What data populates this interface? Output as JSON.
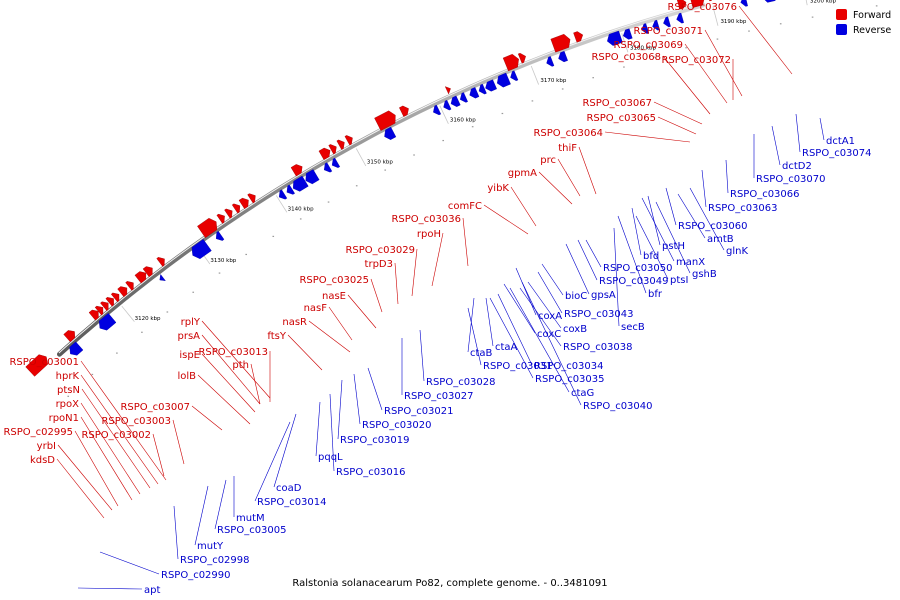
{
  "legend": [
    {
      "label": "Forward",
      "color": "#e80000"
    },
    {
      "label": "Reverse",
      "color": "#0000e0"
    }
  ],
  "caption": "Ralstonia solanacearum Po82, complete genome. - 0..3481091",
  "colors": {
    "forward": "#e80000",
    "reverse": "#0000e0",
    "label_forward": "#cc0000",
    "label_reverse": "#0000cc",
    "backbone": "#888888"
  },
  "ticks": [
    "3120 kbp",
    "3130 kbp",
    "3140 kbp",
    "3150 kbp",
    "3160 kbp",
    "3170 kbp",
    "3180 kbp",
    "3190 kbp",
    "3200 kbp"
  ],
  "forward_labels": [
    "RSPO_c03076",
    "RSPO_c03071",
    "RSPO_c03069",
    "RSPO_c03068",
    "RSPO_c03072",
    "RSPO_c03067",
    "RSPO_c03065",
    "RSPO_c03064",
    "thiF",
    "prc",
    "gpmA",
    "yibK",
    "comFC",
    "RSPO_c03036",
    "rpoH",
    "RSPO_c03029",
    "trpD3",
    "RSPO_c03025",
    "nasE",
    "nasF",
    "nasR",
    "ftsY",
    "rplY",
    "prsA",
    "RSPO_c03013",
    "ispE",
    "pth",
    "lolB",
    "RSPO_c03007",
    "RSPO_c03003",
    "RSPO_c03001",
    "hprK",
    "ptsN",
    "rpoX",
    "rpoN1",
    "RSPO_c03002",
    "RSPO_c02995",
    "yrbI",
    "kdsD"
  ],
  "reverse_labels": [
    "dctA1",
    "RSPO_c03074",
    "dctD2",
    "RSPO_c03070",
    "RSPO_c03066",
    "RSPO_c03063",
    "RSPO_c03060",
    "amtB",
    "glnK",
    "pstH",
    "manX",
    "bfd",
    "gshB",
    "RSPO_c03050",
    "ptsI",
    "RSPO_c03049",
    "bfr",
    "gpsA",
    "bioC",
    "RSPO_c03043",
    "secB",
    "coxA",
    "coxB",
    "coxC",
    "RSPO_c03038",
    "ctaA",
    "ctaB",
    "RSPO_c03034",
    "RSPO_c03031",
    "RSPO_c03035",
    "ctaG",
    "RSPO_c03040",
    "RSPO_c03028",
    "RSPO_c03027",
    "RSPO_c03021",
    "RSPO_c03020",
    "RSPO_c03019",
    "RSPO_c03016",
    "pqqL",
    "coaD",
    "RSPO_c03014",
    "mutM",
    "RSPO_c03005",
    "mutY",
    "RSPO_c02998",
    "RSPO_c02990",
    "apt"
  ]
}
